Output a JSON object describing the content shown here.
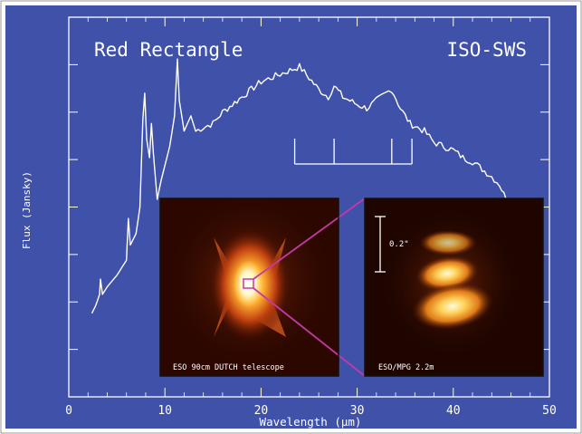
{
  "colors": {
    "background": "#3f51a8",
    "foreground": "#ffffff",
    "connector": "#c23aa8",
    "frame": "#111111"
  },
  "chart_data": {
    "type": "line",
    "title": "Red Rectangle",
    "instrument_label": "ISO-SWS",
    "xlabel": "Wavelength (μm)",
    "ylabel": "Flux (Jansky)",
    "xlim": [
      0,
      50
    ],
    "xticks": [
      0,
      10,
      20,
      30,
      40,
      50
    ],
    "y_tick_labels_shown": false,
    "grid": false,
    "series": [
      {
        "points": [
          [
            2.4,
            0.22
          ],
          [
            2.8,
            0.24
          ],
          [
            3.2,
            0.27
          ],
          [
            3.3,
            0.31
          ],
          [
            3.5,
            0.27
          ],
          [
            4.0,
            0.29
          ],
          [
            5.0,
            0.32
          ],
          [
            6.0,
            0.36
          ],
          [
            6.2,
            0.47
          ],
          [
            6.4,
            0.4
          ],
          [
            7.0,
            0.43
          ],
          [
            7.4,
            0.5
          ],
          [
            7.7,
            0.73
          ],
          [
            7.9,
            0.8
          ],
          [
            8.1,
            0.68
          ],
          [
            8.4,
            0.63
          ],
          [
            8.6,
            0.72
          ],
          [
            8.8,
            0.64
          ],
          [
            9.2,
            0.52
          ],
          [
            9.6,
            0.57
          ],
          [
            10.0,
            0.61
          ],
          [
            10.5,
            0.66
          ],
          [
            11.0,
            0.74
          ],
          [
            11.3,
            0.89
          ],
          [
            11.5,
            0.78
          ],
          [
            12.0,
            0.7
          ],
          [
            12.7,
            0.74
          ],
          [
            13.2,
            0.7
          ],
          [
            14,
            0.71
          ],
          [
            15,
            0.72
          ],
          [
            16,
            0.75
          ],
          [
            17,
            0.77
          ],
          [
            18,
            0.79
          ],
          [
            19,
            0.81
          ],
          [
            20,
            0.83
          ],
          [
            21,
            0.84
          ],
          [
            22,
            0.85
          ],
          [
            23,
            0.86
          ],
          [
            24,
            0.87
          ],
          [
            25,
            0.84
          ],
          [
            26,
            0.81
          ],
          [
            27,
            0.79
          ],
          [
            27.6,
            0.82
          ],
          [
            28.5,
            0.79
          ],
          [
            30,
            0.77
          ],
          [
            31,
            0.76
          ],
          [
            32,
            0.78
          ],
          [
            33,
            0.8
          ],
          [
            33.6,
            0.81
          ],
          [
            34.5,
            0.76
          ],
          [
            35.5,
            0.72
          ],
          [
            37,
            0.7
          ],
          [
            38,
            0.67
          ],
          [
            39,
            0.66
          ],
          [
            40,
            0.65
          ],
          [
            41,
            0.63
          ],
          [
            42,
            0.62
          ],
          [
            43,
            0.6
          ],
          [
            44,
            0.58
          ],
          [
            44.8,
            0.56
          ],
          [
            45.5,
            0.52
          ]
        ]
      }
    ],
    "feature_markers_um": [
      23.5,
      27.6,
      33.6,
      35.7
    ],
    "insets": [
      {
        "caption": "ESO 90cm DUTCH telescope",
        "image": "bipolar-nebula-wide-field"
      },
      {
        "caption": "ESO/MPG 2.2m",
        "scale_label": "0.2\"",
        "image": "nebula-core-closeup"
      }
    ]
  }
}
